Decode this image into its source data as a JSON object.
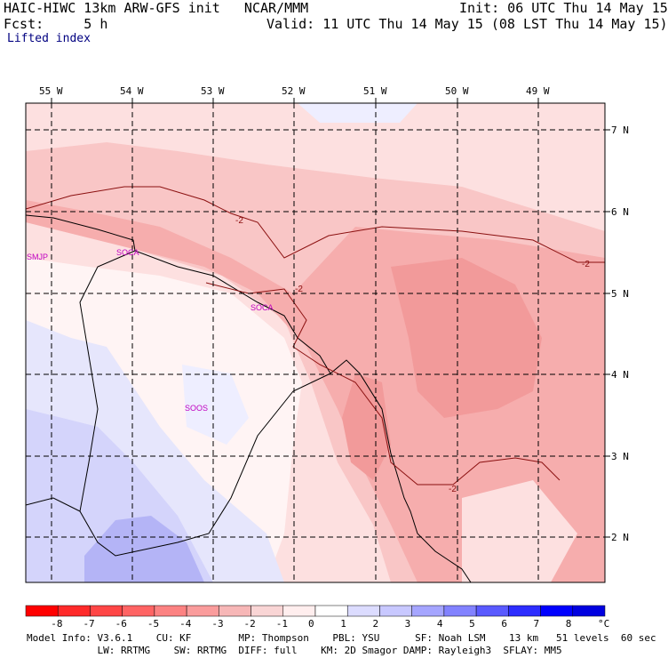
{
  "header": {
    "title": "HAIC-HIWC 13km ARW-GFS init   NCAR/MMM",
    "init": "Init: 06 UTC Thu 14 May 15",
    "fcst": "Fcst:     5 h",
    "valid": "Valid: 11 UTC Thu 14 May 15 (08 LST Thu 14 May 15)",
    "field": "Lifted index"
  },
  "longitudes": [
    "55 W",
    "54 W",
    "53 W",
    "52 W",
    "51 W",
    "50 W",
    "49 W"
  ],
  "latitudes": [
    "7 N",
    "6 N",
    "5 N",
    "4 N",
    "3 N",
    "2 N"
  ],
  "stations": [
    "SMJP",
    "SOCA",
    "SOCA",
    "SOOS"
  ],
  "contour_labels": [
    "-2",
    "-2",
    "-2",
    "-2"
  ],
  "colorbar": {
    "labels": [
      "-8",
      "-7",
      "-6",
      "-5",
      "-4",
      "-3",
      "-2",
      "-1",
      "0",
      "1",
      "2",
      "3",
      "4",
      "5",
      "6",
      "7",
      "8"
    ],
    "unit": "°C",
    "colors": [
      "#ff0000",
      "#ff2a2a",
      "#ff4646",
      "#ff6464",
      "#fc8282",
      "#fa9c9c",
      "#f7b7b7",
      "#f9d5d5",
      "#ffeeee",
      "#ffffff",
      "#dcdcff",
      "#c8c8ff",
      "#a5a5ff",
      "#8282ff",
      "#5a5aff",
      "#2d2dff",
      "#0000ff",
      "#0000e0"
    ]
  },
  "footer": {
    "line1": "Model Info: V3.6.1    CU: KF        MP: Thompson    PBL: YSU      SF: Noah LSM    13 km   51 levels  60 sec",
    "line2": "            LW: RRTMG    SW: RRTMG  DIFF: full    KM: 2D Smagor DAMP: Rayleigh3  SFLAY: MM5"
  }
}
